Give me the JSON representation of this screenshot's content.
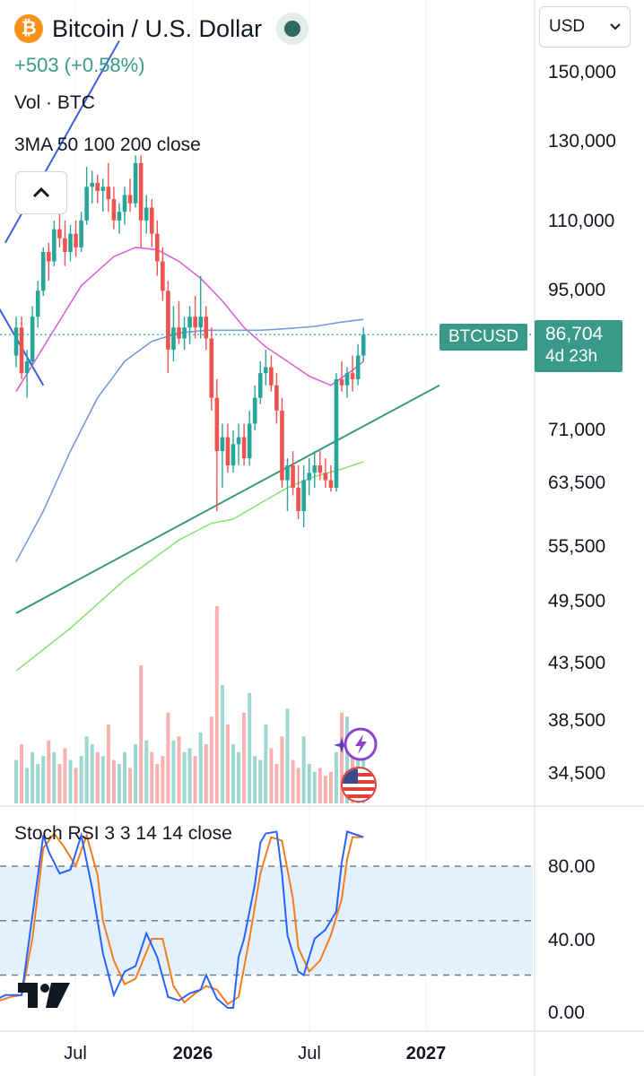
{
  "header": {
    "title": "Bitcoin / U.S. Dollar",
    "logo_symbol": "₿",
    "change": "+503 (+0.58%)",
    "volume_label": "Vol · BTC",
    "ma_label": "3MA 50 100 200 close",
    "currency": "USD"
  },
  "price_scale": [
    "150,000",
    "130,000",
    "110,000",
    "95,000",
    "71,000",
    "63,500",
    "55,500",
    "49,500",
    "43,500",
    "38,500",
    "34,500"
  ],
  "last_price": {
    "symbol": "BTCUSD",
    "price": "86,704",
    "countdown": "4d 23h"
  },
  "stoch": {
    "label": "Stoch RSI 3 3 14 14 close",
    "ticks": [
      "80.00",
      "40.00",
      "0.00"
    ]
  },
  "time_axis": [
    "Jul",
    "2026",
    "Jul",
    "2027"
  ],
  "colors": {
    "up": "#26a69a",
    "down": "#ef5350",
    "ma50": "#e062d6",
    "ma100": "#7a9ad8",
    "ma200": "#8ee37a",
    "trendline": "#3a9a7a",
    "rsi_k": "#2962ff",
    "rsi_d": "#f57c22",
    "rsi_band": "#e3f1fc",
    "change": "#3a9a8a",
    "status": "#2e6b5b"
  },
  "icons": [
    "bitcoin-logo-icon",
    "chevron-up-icon",
    "chevron-down-icon",
    "lightning-icon",
    "sparkle-icon",
    "us-flag-icon",
    "tradingview-logo-icon"
  ],
  "chart_data": {
    "type": "candlestick",
    "symbol": "BTCUSD",
    "interval": "1W",
    "x_range": [
      "2025-04",
      "2027-03"
    ],
    "y_scale": "log",
    "ylim": [
      32000,
      165000
    ],
    "ohlc": [
      [
        0,
        83000,
        90000,
        81000,
        88000
      ],
      [
        1,
        88000,
        90000,
        79000,
        80000
      ],
      [
        2,
        80000,
        84000,
        76000,
        82000
      ],
      [
        3,
        82000,
        92000,
        81000,
        90000
      ],
      [
        4,
        90000,
        97000,
        88000,
        95000
      ],
      [
        5,
        95000,
        104000,
        94000,
        103000
      ],
      [
        6,
        103000,
        105000,
        97000,
        101000
      ],
      [
        7,
        101000,
        110000,
        100000,
        108000
      ],
      [
        8,
        108000,
        112000,
        104000,
        106000
      ],
      [
        9,
        106000,
        110000,
        100000,
        103000
      ],
      [
        10,
        103000,
        109000,
        101000,
        107000
      ],
      [
        11,
        107000,
        110000,
        102000,
        104000
      ],
      [
        12,
        104000,
        112000,
        103000,
        110000
      ],
      [
        13,
        110000,
        123000,
        109000,
        118000
      ],
      [
        14,
        118000,
        122000,
        114000,
        119000
      ],
      [
        15,
        119000,
        121000,
        114000,
        117000
      ],
      [
        16,
        117000,
        120000,
        112000,
        118000
      ],
      [
        17,
        118000,
        124000,
        112000,
        115000
      ],
      [
        18,
        115000,
        118000,
        108000,
        110000
      ],
      [
        19,
        110000,
        114000,
        107000,
        112000
      ],
      [
        20,
        112000,
        118000,
        109000,
        116000
      ],
      [
        21,
        116000,
        120000,
        112000,
        114000
      ],
      [
        22,
        114000,
        126000,
        113000,
        124000
      ],
      [
        23,
        124000,
        126000,
        104000,
        110000
      ],
      [
        24,
        110000,
        116000,
        107000,
        113000
      ],
      [
        25,
        113000,
        115000,
        104000,
        107000
      ],
      [
        26,
        107000,
        110000,
        98000,
        101000
      ],
      [
        27,
        101000,
        104000,
        93000,
        95000
      ],
      [
        28,
        95000,
        97000,
        80000,
        84000
      ],
      [
        29,
        84000,
        92000,
        82000,
        88000
      ],
      [
        30,
        88000,
        93000,
        85000,
        86000
      ],
      [
        31,
        86000,
        90000,
        84000,
        88000
      ],
      [
        32,
        88000,
        92000,
        85000,
        90000
      ],
      [
        33,
        90000,
        94000,
        86000,
        88000
      ],
      [
        34,
        88000,
        98000,
        86000,
        90000
      ],
      [
        35,
        90000,
        92000,
        84000,
        86000
      ],
      [
        36,
        86000,
        88000,
        74000,
        76000
      ],
      [
        37,
        76000,
        79000,
        60000,
        68000
      ],
      [
        38,
        68000,
        72000,
        63000,
        70000
      ],
      [
        39,
        70000,
        72000,
        65000,
        66000
      ],
      [
        40,
        66000,
        71000,
        65000,
        69000
      ],
      [
        41,
        69000,
        72000,
        66000,
        70000
      ],
      [
        42,
        70000,
        72000,
        66000,
        67000
      ],
      [
        43,
        67000,
        74000,
        66000,
        72000
      ],
      [
        44,
        72000,
        78000,
        71000,
        76000
      ],
      [
        45,
        76000,
        82000,
        75000,
        80000
      ],
      [
        46,
        80000,
        84000,
        78000,
        81000
      ],
      [
        47,
        81000,
        83000,
        77000,
        78000
      ],
      [
        48,
        78000,
        80000,
        72000,
        74000
      ],
      [
        49,
        74000,
        76000,
        63000,
        64000
      ],
      [
        50,
        64000,
        67000,
        60000,
        66000
      ],
      [
        51,
        66000,
        68000,
        62000,
        63000
      ],
      [
        52,
        63000,
        66000,
        59000,
        60000
      ],
      [
        53,
        60000,
        66000,
        58000,
        64000
      ],
      [
        54,
        64000,
        67000,
        62000,
        65000
      ],
      [
        55,
        65000,
        68000,
        63000,
        66000
      ],
      [
        56,
        66000,
        68000,
        64000,
        65000
      ],
      [
        57,
        65000,
        67000,
        63000,
        64000
      ],
      [
        58,
        64000,
        66000,
        62500,
        63000
      ],
      [
        59,
        63000,
        80000,
        62500,
        79000
      ],
      [
        60,
        79000,
        82000,
        77000,
        78000
      ],
      [
        61,
        78000,
        81000,
        76000,
        80000
      ],
      [
        62,
        80000,
        83000,
        77000,
        79000
      ],
      [
        63,
        79000,
        85000,
        78000,
        83000
      ],
      [
        64,
        83000,
        88000,
        82000,
        86704
      ]
    ],
    "moving_averages": [
      {
        "period": 50,
        "points": [
          [
            0,
            77000
          ],
          [
            6,
            86000
          ],
          [
            12,
            96000
          ],
          [
            18,
            102000
          ],
          [
            22,
            104000
          ],
          [
            26,
            103500
          ],
          [
            30,
            101000
          ],
          [
            34,
            97500
          ],
          [
            38,
            93000
          ],
          [
            42,
            88000
          ],
          [
            46,
            84500
          ],
          [
            50,
            82000
          ],
          [
            54,
            79500
          ],
          [
            58,
            78000
          ],
          [
            62,
            80500
          ],
          [
            64,
            82000
          ]
        ]
      },
      {
        "period": 100,
        "points": [
          [
            0,
            54000
          ],
          [
            5,
            60000
          ],
          [
            10,
            68000
          ],
          [
            15,
            76000
          ],
          [
            20,
            82000
          ],
          [
            25,
            85500
          ],
          [
            30,
            87000
          ],
          [
            35,
            87500
          ],
          [
            40,
            87500
          ],
          [
            45,
            87500
          ],
          [
            50,
            87800
          ],
          [
            55,
            88200
          ],
          [
            60,
            89000
          ],
          [
            64,
            89500
          ]
        ]
      },
      {
        "period": 200,
        "points": [
          [
            0,
            43000
          ],
          [
            10,
            47000
          ],
          [
            20,
            52000
          ],
          [
            30,
            56500
          ],
          [
            36,
            58500
          ],
          [
            40,
            59000
          ],
          [
            45,
            61000
          ],
          [
            50,
            63000
          ],
          [
            55,
            64500
          ],
          [
            60,
            65500
          ],
          [
            64,
            66500
          ]
        ]
      }
    ],
    "trendlines": [
      {
        "points": [
          [
            0,
            48500
          ],
          [
            78,
            78000
          ]
        ]
      },
      {
        "points": [
          [
            -2,
            105000
          ],
          [
            19,
            160000
          ]
        ]
      },
      {
        "points": [
          [
            -5,
            95000
          ],
          [
            5,
            78000
          ]
        ]
      }
    ],
    "volume": [
      22,
      30,
      18,
      26,
      20,
      24,
      32,
      26,
      20,
      28,
      22,
      18,
      24,
      34,
      30,
      26,
      24,
      40,
      22,
      20,
      26,
      18,
      30,
      70,
      32,
      26,
      20,
      24,
      46,
      32,
      34,
      26,
      28,
      24,
      36,
      30,
      44,
      100,
      60,
      40,
      30,
      26,
      46,
      56,
      24,
      22,
      40,
      28,
      20,
      34,
      48,
      22,
      18,
      34,
      20,
      16,
      18,
      14,
      16,
      26,
      46,
      44,
      28,
      24,
      30
    ],
    "stoch_rsi": {
      "k": [
        [
          -4,
          6
        ],
        [
          -2,
          9
        ],
        [
          1,
          9
        ],
        [
          5,
          97
        ],
        [
          6,
          88
        ],
        [
          8,
          76
        ],
        [
          10,
          78
        ],
        [
          12,
          97
        ],
        [
          14,
          68
        ],
        [
          15,
          50
        ],
        [
          16,
          32
        ],
        [
          18,
          9
        ],
        [
          20,
          22
        ],
        [
          22,
          25
        ],
        [
          24,
          43
        ],
        [
          26,
          30
        ],
        [
          28,
          8
        ],
        [
          30,
          6
        ],
        [
          32,
          10
        ],
        [
          34,
          12
        ],
        [
          35,
          20
        ],
        [
          37,
          7
        ],
        [
          39,
          2
        ],
        [
          40,
          2
        ],
        [
          41,
          30
        ],
        [
          42,
          40
        ],
        [
          44,
          70
        ],
        [
          45,
          93
        ],
        [
          46,
          98
        ],
        [
          48,
          99
        ],
        [
          49,
          76
        ],
        [
          50,
          42
        ],
        [
          52,
          22
        ],
        [
          53,
          20
        ],
        [
          55,
          40
        ],
        [
          57,
          45
        ],
        [
          59,
          55
        ],
        [
          60,
          82
        ],
        [
          61,
          99
        ],
        [
          62,
          98
        ],
        [
          64,
          96
        ]
      ],
      "d": [
        [
          -4,
          5
        ],
        [
          -1,
          8
        ],
        [
          1,
          9
        ],
        [
          3,
          40
        ],
        [
          5,
          90
        ],
        [
          7,
          98
        ],
        [
          9,
          90
        ],
        [
          11,
          80
        ],
        [
          13,
          97
        ],
        [
          15,
          75
        ],
        [
          16,
          50
        ],
        [
          18,
          28
        ],
        [
          20,
          15
        ],
        [
          22,
          18
        ],
        [
          25,
          40
        ],
        [
          27,
          40
        ],
        [
          29,
          14
        ],
        [
          31,
          5
        ],
        [
          33,
          10
        ],
        [
          35,
          14
        ],
        [
          37,
          12
        ],
        [
          39,
          4
        ],
        [
          41,
          8
        ],
        [
          43,
          40
        ],
        [
          45,
          76
        ],
        [
          47,
          96
        ],
        [
          49,
          94
        ],
        [
          51,
          62
        ],
        [
          52,
          35
        ],
        [
          54,
          22
        ],
        [
          56,
          28
        ],
        [
          58,
          42
        ],
        [
          60,
          62
        ],
        [
          61,
          84
        ],
        [
          62,
          96
        ],
        [
          64,
          96
        ]
      ],
      "ylim": [
        -8,
        110
      ],
      "bands": [
        20,
        50,
        80
      ]
    }
  }
}
